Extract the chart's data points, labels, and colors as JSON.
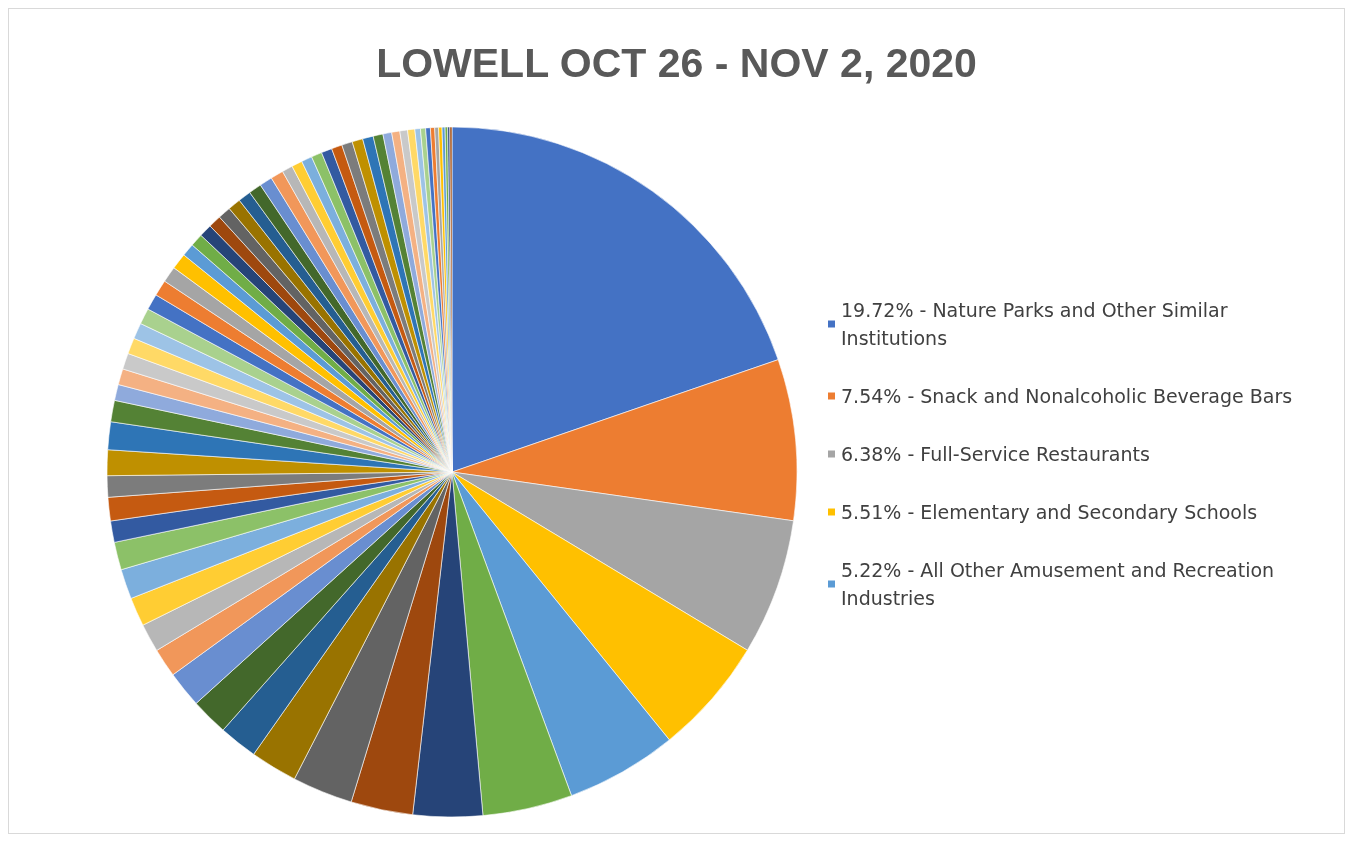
{
  "chart_data": {
    "type": "pie",
    "title": "LOWELL OCT 26 - NOV 2, 2020",
    "legend": "right",
    "categories": [
      "19.72% - Nature Parks and Other Similar Institutions",
      "7.54% - Snack and Nonalcoholic Beverage Bars",
      "6.38% - Full-Service Restaurants",
      "5.51% - Elementary and Secondary Schools",
      "5.22% - All Other Amusement and Recreation Industries",
      null,
      null,
      null,
      null,
      null,
      null,
      null,
      null,
      null,
      null,
      null,
      null,
      null,
      null,
      null,
      null,
      null,
      null,
      null,
      null,
      null,
      null,
      null,
      null,
      null,
      null,
      null,
      null,
      null,
      null,
      null,
      null,
      null,
      null,
      null,
      null,
      null,
      null,
      null,
      null,
      null,
      null,
      null,
      null,
      null,
      null,
      null,
      null,
      null,
      null,
      null,
      null,
      null,
      null,
      null,
      null,
      null,
      null,
      null,
      null,
      null,
      null,
      null
    ],
    "values": [
      19.72,
      7.54,
      6.38,
      5.51,
      5.22,
      4.2,
      3.25,
      2.9,
      2.83,
      2.2,
      1.8,
      1.75,
      1.7,
      1.35,
      1.33,
      1.35,
      1.4,
      1.3,
      1.0,
      1.1,
      1.0,
      1.2,
      1.3,
      1.0,
      0.75,
      0.75,
      0.75,
      0.75,
      0.75,
      0.75,
      0.75,
      0.75,
      0.75,
      0.75,
      0.6,
      0.6,
      0.6,
      0.6,
      0.6,
      0.6,
      0.6,
      0.6,
      0.6,
      0.6,
      0.5,
      0.5,
      0.5,
      0.5,
      0.5,
      0.5,
      0.5,
      0.5,
      0.5,
      0.46,
      0.41,
      0.38,
      0.36,
      0.34,
      0.26,
      0.24,
      0.22,
      0.2,
      0.18,
      0.16,
      0.14,
      0.12,
      0.1,
      0.1
    ],
    "colors": [
      "#4472c4",
      "#ed7d31",
      "#a5a5a5",
      "#ffc000",
      "#5b9bd5",
      "#70ad47",
      "#264478",
      "#9e480e",
      "#636363",
      "#997300",
      "#255e91",
      "#43682b",
      "#698ed0",
      "#f1975a",
      "#b7b7b7",
      "#ffcd33",
      "#7cafdd",
      "#8cc168",
      "#335aa1",
      "#c55a11",
      "#7c7c7c",
      "#bf9000",
      "#2e75b6",
      "#548235",
      "#8faadc",
      "#f4b183",
      "#c9c9c9",
      "#ffd966",
      "#9dc3e6",
      "#a9d18e",
      "#4472c4",
      "#ed7d31",
      "#a5a5a5",
      "#ffc000",
      "#5b9bd5",
      "#70ad47",
      "#264478",
      "#9e480e",
      "#636363",
      "#997300",
      "#255e91",
      "#43682b",
      "#698ed0",
      "#f1975a",
      "#b7b7b7",
      "#ffcd33",
      "#7cafdd",
      "#8cc168",
      "#335aa1",
      "#c55a11",
      "#7c7c7c",
      "#bf9000",
      "#2e75b6",
      "#548235",
      "#8faadc",
      "#f4b183",
      "#c9c9c9",
      "#ffd966",
      "#9dc3e6",
      "#a9d18e",
      "#4472c4",
      "#ed7d31",
      "#a5a5a5",
      "#ffc000",
      "#5b9bd5",
      "#70ad47",
      "#264478",
      "#9e480e"
    ]
  }
}
